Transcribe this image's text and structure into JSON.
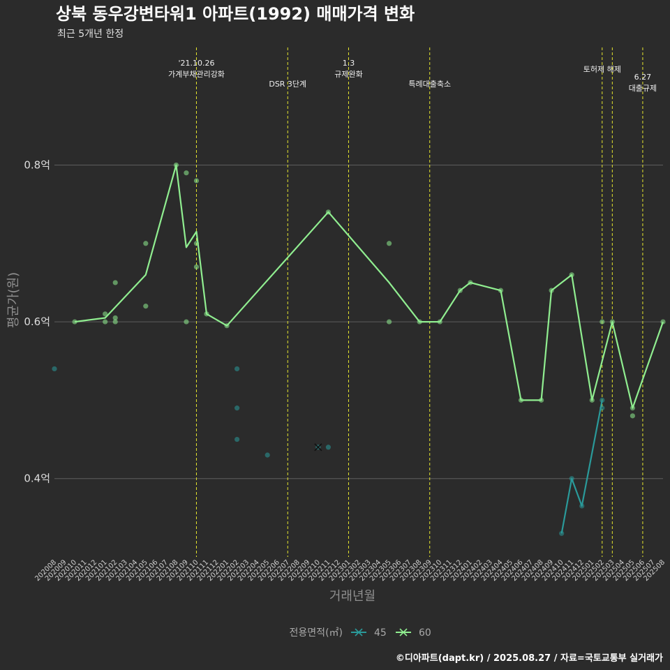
{
  "chart_data": {
    "type": "line",
    "title": "상북 동우강변타워1 아파트(1992) 매매가격 변화",
    "subtitle": "최근 5개년 한정",
    "xlabel": "거래년월",
    "ylabel": "평균가(원)",
    "categories": [
      "202008",
      "202009",
      "202010",
      "202011",
      "202012",
      "202101",
      "202102",
      "202103",
      "202104",
      "202105",
      "202106",
      "202107",
      "202108",
      "202109",
      "202110",
      "202111",
      "202112",
      "202201",
      "202202",
      "202203",
      "202204",
      "202205",
      "202206",
      "202207",
      "202208",
      "202209",
      "202210",
      "202211",
      "202212",
      "202301",
      "202302",
      "202303",
      "202304",
      "202305",
      "202306",
      "202307",
      "202308",
      "202309",
      "202310",
      "202311",
      "202312",
      "202401",
      "202402",
      "202403",
      "202404",
      "202405",
      "202406",
      "202407",
      "202408",
      "202409",
      "202410",
      "202411",
      "202412",
      "202501",
      "202502",
      "202503",
      "202504",
      "202505",
      "202506",
      "202507",
      "202508"
    ],
    "ylim": [
      0.3,
      0.95
    ],
    "yticks": [
      {
        "value": 0.4,
        "label": "0.4억"
      },
      {
        "value": 0.6,
        "label": "0.6억"
      },
      {
        "value": 0.8,
        "label": "0.8억"
      }
    ],
    "grid": true,
    "legend": {
      "title": "전용면적(㎡)",
      "position": "bottom"
    },
    "series": [
      {
        "name": "45",
        "color": "#2a9a9a",
        "line": [
          {
            "x": "202410",
            "y": 0.33
          },
          {
            "x": "202411",
            "y": 0.4
          },
          {
            "x": "202412",
            "y": 0.365
          },
          {
            "x": "202502",
            "y": 0.5
          }
        ],
        "points": [
          {
            "x": "202008",
            "y": 0.54
          },
          {
            "x": "202202",
            "y": 0.54
          },
          {
            "x": "202202",
            "y": 0.49
          },
          {
            "x": "202202",
            "y": 0.45
          },
          {
            "x": "202205",
            "y": 0.43
          },
          {
            "x": "202210",
            "y": 0.44
          },
          {
            "x": "202211",
            "y": 0.44
          },
          {
            "x": "202410",
            "y": 0.33
          },
          {
            "x": "202411",
            "y": 0.4
          },
          {
            "x": "202412",
            "y": 0.365
          },
          {
            "x": "202502",
            "y": 0.5
          },
          {
            "x": "202502",
            "y": 0.49
          }
        ],
        "markers": [
          {
            "x": "202210",
            "y": 0.44
          }
        ]
      },
      {
        "name": "60",
        "color": "#90ee90",
        "line": [
          {
            "x": "202010",
            "y": 0.6
          },
          {
            "x": "202101",
            "y": 0.605
          },
          {
            "x": "202105",
            "y": 0.66
          },
          {
            "x": "202108",
            "y": 0.8
          },
          {
            "x": "202109",
            "y": 0.695
          },
          {
            "x": "202110",
            "y": 0.715
          },
          {
            "x": "202111",
            "y": 0.61
          },
          {
            "x": "202201",
            "y": 0.595
          },
          {
            "x": "202211",
            "y": 0.74
          },
          {
            "x": "202305",
            "y": 0.65
          },
          {
            "x": "202308",
            "y": 0.6
          },
          {
            "x": "202310",
            "y": 0.6
          },
          {
            "x": "202312",
            "y": 0.64
          },
          {
            "x": "202401",
            "y": 0.65
          },
          {
            "x": "202404",
            "y": 0.64
          },
          {
            "x": "202406",
            "y": 0.5
          },
          {
            "x": "202408",
            "y": 0.5
          },
          {
            "x": "202409",
            "y": 0.64
          },
          {
            "x": "202411",
            "y": 0.66
          },
          {
            "x": "202501",
            "y": 0.5
          },
          {
            "x": "202503",
            "y": 0.6
          },
          {
            "x": "202505",
            "y": 0.49
          },
          {
            "x": "202508",
            "y": 0.6
          }
        ],
        "points": [
          {
            "x": "202010",
            "y": 0.6
          },
          {
            "x": "202101",
            "y": 0.61
          },
          {
            "x": "202101",
            "y": 0.6
          },
          {
            "x": "202102",
            "y": 0.65
          },
          {
            "x": "202102",
            "y": 0.605
          },
          {
            "x": "202102",
            "y": 0.6
          },
          {
            "x": "202105",
            "y": 0.7
          },
          {
            "x": "202105",
            "y": 0.62
          },
          {
            "x": "202108",
            "y": 0.8
          },
          {
            "x": "202109",
            "y": 0.79
          },
          {
            "x": "202109",
            "y": 0.6
          },
          {
            "x": "202110",
            "y": 0.78
          },
          {
            "x": "202110",
            "y": 0.7
          },
          {
            "x": "202110",
            "y": 0.67
          },
          {
            "x": "202111",
            "y": 0.61
          },
          {
            "x": "202201",
            "y": 0.595
          },
          {
            "x": "202211",
            "y": 0.74
          },
          {
            "x": "202305",
            "y": 0.7
          },
          {
            "x": "202305",
            "y": 0.6
          },
          {
            "x": "202308",
            "y": 0.6
          },
          {
            "x": "202310",
            "y": 0.6
          },
          {
            "x": "202312",
            "y": 0.64
          },
          {
            "x": "202401",
            "y": 0.65
          },
          {
            "x": "202404",
            "y": 0.64
          },
          {
            "x": "202406",
            "y": 0.5
          },
          {
            "x": "202408",
            "y": 0.5
          },
          {
            "x": "202409",
            "y": 0.64
          },
          {
            "x": "202411",
            "y": 0.66
          },
          {
            "x": "202501",
            "y": 0.5
          },
          {
            "x": "202502",
            "y": 0.6
          },
          {
            "x": "202503",
            "y": 0.6
          },
          {
            "x": "202505",
            "y": 0.49
          },
          {
            "x": "202505",
            "y": 0.48
          },
          {
            "x": "202508",
            "y": 0.6
          }
        ]
      }
    ],
    "events": [
      {
        "x": "202110",
        "lines": [
          "'21.10.26",
          "가계부채관리강화"
        ],
        "row": 0
      },
      {
        "x": "202207",
        "lines": [
          "DSR 3단계"
        ],
        "row": 1
      },
      {
        "x": "202301",
        "lines": [
          "1.3",
          "규제완화"
        ],
        "row": 0
      },
      {
        "x": "202309",
        "lines": [
          "특례대출축소"
        ],
        "row": 1
      },
      {
        "x": "202502",
        "lines": [
          "토허제 해제"
        ],
        "row": 2,
        "anchor": "start_right"
      },
      {
        "x": "202503",
        "lines": [],
        "row": 2
      },
      {
        "x": "202506",
        "lines": [
          "6.27",
          "대출규제"
        ],
        "row": 3
      }
    ],
    "event_color": "#e6e62e",
    "caption": "©디아파트(dapt.kr) / 2025.08.27 / 자료=국토교통부 실거래가"
  }
}
